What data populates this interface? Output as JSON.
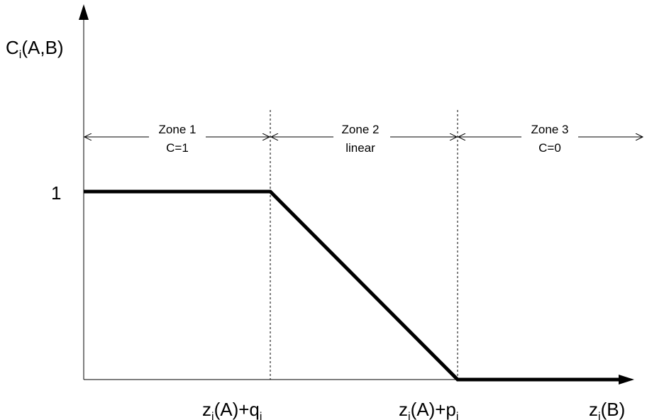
{
  "y_axis_label": {
    "main": "C",
    "sub": "i",
    "rest": "(A,B)"
  },
  "x_axis_label": {
    "main": "z",
    "sub": "i",
    "rest": "(B)"
  },
  "y_tick_label": "1",
  "x_tick_q": {
    "z": "z",
    "z_sub": "i",
    "mid": "(A)+q",
    "q_sub": "i"
  },
  "x_tick_p": {
    "z": "z",
    "z_sub": "i",
    "mid": "(A)+p",
    "p_sub": "i"
  },
  "zones": [
    {
      "title": "Zone 1",
      "desc": "C=1"
    },
    {
      "title": "Zone 2",
      "desc": "linear"
    },
    {
      "title": "Zone 3",
      "desc": "C=0"
    }
  ],
  "colors": {
    "line": "#000000",
    "background": "#ffffff"
  }
}
